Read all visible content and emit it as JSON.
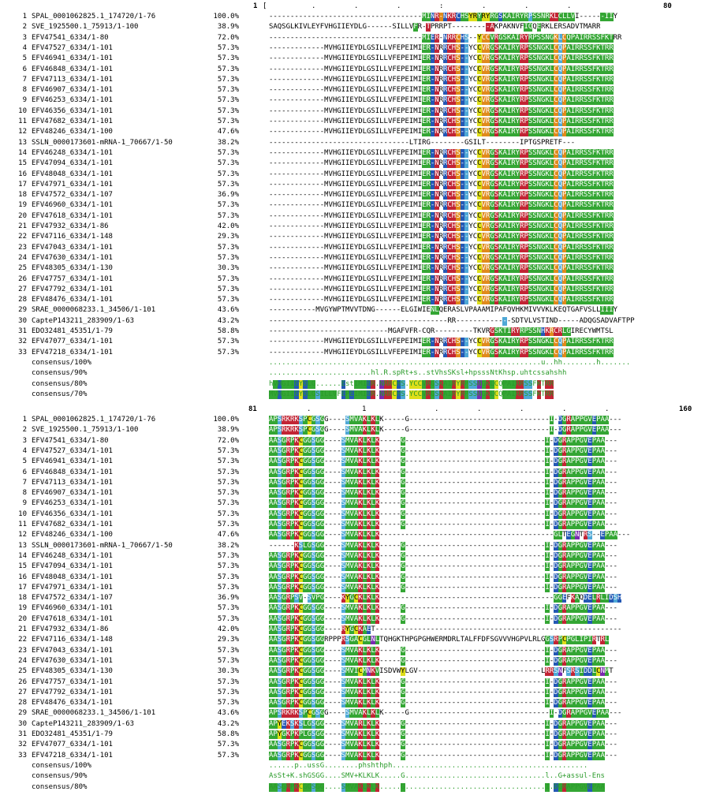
{
  "block1": {
    "ruler": {
      "start": "1",
      "bracket": "[",
      "end": "80",
      "marks": [
        ".",
        ".",
        ".",
        ":",
        ".",
        ".",
        "."
      ]
    },
    "rows": [
      {
        "n": "1",
        "name": "SPAL_0001062825.1_174720/1-76",
        "pct": "100.0%",
        "seq": "------------------------------------MINR-NKRCHSYRYRYRGSKAIRYRPSSNRKLCLLVI------IIY",
        "marks": "000000000000000000000000000000000000GGBRCBRRBGGYYGYYGGBGGGGGGLGGGGRRGGGG000000GGG"
      },
      {
        "n": "2",
        "name": "SVE_1925500.1_75913/1-100",
        "pct": "38.9%",
        "seq": "SAQSGLKIVLEYFVHGIIEYDLG------SILLVFR-TPRRPT---------AKPAKNVFIQQERKLERSADVTMARR",
        "marks": "0000000000000000000000000000000000G00R0000000000000RR0000000GG0G000000000000000"
      },
      {
        "n": "3",
        "name": "EFV47541_6334/1-80",
        "pct": "72.0%",
        "seq": "------------------------------------MIER-NRRCHS--YCCVRGSKAIRYRPSSNGKLCQPAIRRSSFKTRR",
        "marks": "000000000000000000000000000000000000GGBR0BRRCBL00YCCGRGGGGGRRGGGGGGCLCGGGGGGGGGGG"
      },
      {
        "n": "4",
        "name": "EFV47527_6334/1-101",
        "pct": "57.3%",
        "seq": "-------------MVHGIIEYDLGSILLVFEPEIMIER-NRRCHS--YCCVRGSKAIRYRPSSNGKLCQPAIRRSSFKTRR",
        "marks": "000000000000000000000000000000000000GGBR0BRRCBL00YCCGRGGGGGRRGGGGGGCLCGGGGGGGGGGG"
      },
      {
        "n": "5",
        "name": "EFV46941_6334/1-101",
        "pct": "57.3%",
        "seq": "-------------MVHGIIEYDLGSILLVFEPEIMIER-NRRCHS--YCCVRGSKAIRYRPSSNGKLCQPAIRRSSFKTRR",
        "marks": "000000000000000000000000000000000000GGBR0BRRCBL00YCCGRGGGGGRRGGGGGGCLCGGGGGGGGGGG"
      },
      {
        "n": "6",
        "name": "EFV46848_6334/1-101",
        "pct": "57.3%",
        "seq": "-------------MVHGIIEYDLGSILLVFEPEIMIER-NRRCHS--YCCVRGSKAIRYRPSSNGKLCQPAIRRSSFKTRR",
        "marks": "000000000000000000000000000000000000GGBR0BRRCBL00YCCGRGGGGGRRGGGGGGCLCGGGGGGGGGGG"
      },
      {
        "n": "7",
        "name": "EFV47113_6334/1-101",
        "pct": "57.3%",
        "seq": "-------------MVHGIIEYDLGSILLVFEPEIMIER-NRRCHS--YCCVRGSKAIRYRPSSNGKLCQPAIRRSSFKTRR",
        "marks": "000000000000000000000000000000000000GGBR0BRRCBL00YCCGRGGGGGRRGGGGGGCLCGGGGGGGGGGG"
      },
      {
        "n": "8",
        "name": "EFV46907_6334/1-101",
        "pct": "57.3%",
        "seq": "-------------MVHGIIEYDLGSILLVFEPEIMIER-NRRCHS--YCCVRGSKAIRYRPSSNGKLCQPAIRRSSFKTRR",
        "marks": "000000000000000000000000000000000000GGBR0BRRCBL00YCCGRGGGGGRRGGGGGGCLCGGGGGGGGGGG"
      },
      {
        "n": "9",
        "name": "EFV46253_6334/1-101",
        "pct": "57.3%",
        "seq": "-------------MVHGIIEYDLGSILLVFEPEIMIER-NRRCHS--YCCVRGSKAIRYRPSSNGKLCQPAIRRSSFKTRR",
        "marks": "000000000000000000000000000000000000GGBR0BRRCBL00YCCGRGGGGGRRGGGGGGCLCGGGGGGGGGGG"
      },
      {
        "n": "10",
        "name": "EFV46356_6334/1-101",
        "pct": "57.3%",
        "seq": "-------------MVHGIIEYDLGSILLVFEPEIMIER-NRRCHS--YCCVRGSKAIRYRPSSNGKLCQPAIRRSSFKTRR",
        "marks": "000000000000000000000000000000000000GGBR0BRRCBL00YCCGRGGGGGRRGGGGGGCLCGGGGGGGGGGG"
      },
      {
        "n": "11",
        "name": "EFV47682_6334/1-101",
        "pct": "57.3%",
        "seq": "-------------MVHGIIEYDLGSILLVFEPEIMIER-NRRCHS--YCCVRGSKAIRYRPSSNGKLCQPAIRRSSFKTRR",
        "marks": "000000000000000000000000000000000000GGBR0BRRCBL00YCCGRGGGGGRRGGGGGGCLCGGGGGGGGGGG"
      },
      {
        "n": "12",
        "name": "EFV48246_6334/1-100",
        "pct": "47.6%",
        "seq": "-------------MVHGIIEYDLGSILLVFEPEIMIER-NRRCHS--YCCVRGSKAIRYRPSSNGKLCQPAIRRSSFKTRR",
        "marks": "000000000000000000000000000000000000GGBR0BRRCBL00YCCGRGGGGGRRGGGGGGCLCGGGGGGGGGGG"
      },
      {
        "n": "13",
        "name": "SSLN_0000173601-mRNA-1_70667/1-50",
        "pct": "38.2%",
        "seq": "---------------------------------LTIRG--------GSILT--------IPTGSPRETF---",
        "marks": "000000000000000000000000000000000000000000000000000000000000000000000000"
      },
      {
        "n": "14",
        "name": "EFV46248_6334/1-101",
        "pct": "57.3%",
        "seq": "-------------MVHGIIEYDLGSILLVFEPEIMIER-NRRCHS--YCCVRGSKAIRYRPSSNGKLCQPAIRRSSFKTRR",
        "marks": "000000000000000000000000000000000000GGBR0BRRCBL00YCCGRGGGGGRRGGGGGGCLCGGGGGGGGGGG"
      },
      {
        "n": "15",
        "name": "EFV47094_6334/1-101",
        "pct": "57.3%",
        "seq": "-------------MVHGIIEYDLGSILLVFEPEIMIER-NRRCHS--YCCVRGSKAIRYRPSSNGKLCQPAIRRSSFKTRR",
        "marks": "000000000000000000000000000000000000GGBR0BRRCBL00YCCGRGGGGGRRGGGGGGCLCGGGGGGGGGGG"
      },
      {
        "n": "16",
        "name": "EFV48048_6334/1-101",
        "pct": "57.3%",
        "seq": "-------------MVHGIIEYDLGSILLVFEPEIMIER-NRRCHS--YCCVRGSKAIRYRPSSNGKLCQPAIRRSSFKTRR",
        "marks": "000000000000000000000000000000000000GGBR0BRRCBL00YCCGRGGGGGRRGGGGGGCLCGGGGGGGGGGG"
      },
      {
        "n": "17",
        "name": "EFV47971_6334/1-101",
        "pct": "57.3%",
        "seq": "-------------MVHGIIEYDLGSILLVFEPEIMIER-NRRCHS--YCCVRGSKAIRYRPSSNGKLCQPAIRRSSFKTRR",
        "marks": "000000000000000000000000000000000000GGBR0BRRCBL00YCCGRGGGGGRRGGGGGGCLCGGGGGGGGGGG"
      },
      {
        "n": "18",
        "name": "EFV47572_6334/1-107",
        "pct": "36.9%",
        "seq": "-------------MVHGIIEYDLGSILLVFEPEIMIER-NRRCHS--YCCVRGSKAIRYRPSSNGKLCQPAIRRSSFKTRR",
        "marks": "000000000000000000000000000000000000GGBR0BRRCBL00YCCGRGGGGGRRGGGGGGCLCGGGGGGGGGGG"
      },
      {
        "n": "19",
        "name": "EFV46960_6334/1-101",
        "pct": "57.3%",
        "seq": "-------------MVHGIIEYDLGSILLVFEPEIMIER-NRRCHS--YCCVRGSKAIRYRPSSNGKLCQPAIRRSSFKTRR",
        "marks": "000000000000000000000000000000000000GGBR0BRRCBL00YCCGRGGGGGRRGGGGGGCLCGGGGGGGGGGG"
      },
      {
        "n": "20",
        "name": "EFV47618_6334/1-101",
        "pct": "57.3%",
        "seq": "-------------MVHGIIEYDLGSILLVFEPEIMIER-NRRCHS--YCCVRGSKAIRYRPSSNGKLCQPAIRRSSFKTRR",
        "marks": "000000000000000000000000000000000000GGBR0BRRCBL00YCCGRGGGGGRRGGGGGGCLCGGGGGGGGGGG"
      },
      {
        "n": "21",
        "name": "EFV47932_6334/1-86",
        "pct": "42.0%",
        "seq": "-------------MVHGIIEYDLGSILLVFEPEIMIER-NRRCHS--YCCVRGSKAIRYRPSSNGKLCQPAIRRSSFKTRR",
        "marks": "000000000000000000000000000000000000GGBR0BRRCBL00YCCGRGGGGGRRGGGGGGCLCGGGGGGGGGGG"
      },
      {
        "n": "22",
        "name": "EFV47116_6334/1-148",
        "pct": "29.3%",
        "seq": "-------------MVHGIIEYDLGSILLVFEPEIMIER-NRRCHS--YCCVRGSKAIRYRPSSNGKLCQPAIRRSSFKTRR",
        "marks": "000000000000000000000000000000000000GGBR0BRRCBL00YCCGRGGGGGRRGGGGGGCLCGGGGGGGGGGG"
      },
      {
        "n": "23",
        "name": "EFV47043_6334/1-101",
        "pct": "57.3%",
        "seq": "-------------MVHGIIEYDLGSILLVFEPEIMIER-NRRCHS--YCCVRGSKAIRYRPSSNGKLCQPAIRRSSFKTRR",
        "marks": "000000000000000000000000000000000000GGBR0BRRCBL00YCCGRGGGGGRRGGGGGGCLCGGGGGGGGGGG"
      },
      {
        "n": "24",
        "name": "EFV47630_6334/1-101",
        "pct": "57.3%",
        "seq": "-------------MVHGIIEYDLGSILLVFEPEIMIER-NRRCHS--YCCVRGSKAIRYRPSSNGKLCQPAIRRSSFKTRR",
        "marks": "000000000000000000000000000000000000GGBR0BRRCBL00YCCGRGGGGGRRGGGGGGCLCGGGGGGGGGGG"
      },
      {
        "n": "25",
        "name": "EFV48305_6334/1-130",
        "pct": "30.3%",
        "seq": "-------------MVHGIIEYDLGSILLVFEPEIMIER-NRRCHS--YCCVRGSKAIRYRPSSNGKLCQPAIRRSSFKTRR",
        "marks": "000000000000000000000000000000000000GGBR0BRRCBL00YCCGRGGGGGRRGGGGGGCLCGGGGGGGGGGG"
      },
      {
        "n": "26",
        "name": "EFV47757_6334/1-101",
        "pct": "57.3%",
        "seq": "-------------MVHGIIEYDLGSILLVFEPEIMIER-NRRCHS--YCCVRGSKAIRYRPSSNGKLCQPAIRRSSFKTRR",
        "marks": "000000000000000000000000000000000000GGBR0BRRCBL00YCCGRGGGGGRRGGGGGGCLCGGGGGGGGGGG"
      },
      {
        "n": "27",
        "name": "EFV47792_6334/1-101",
        "pct": "57.3%",
        "seq": "-------------MVHGIIEYDLGSILLVFEPEIMIER-NRRCHS--YCCVRGSKAIRYRPSSNGKLCQPAIRRSSFKTRR",
        "marks": "000000000000000000000000000000000000GGBR0BRRCBL00YCCGRGGGGGRRGGGGGGCLCGGGGGGGGGGG"
      },
      {
        "n": "28",
        "name": "EFV48476_6334/1-101",
        "pct": "57.3%",
        "seq": "-------------MVHGIIEYDLGSILLVFEPEIMIER-NRRCHS--YCCVRGSKAIRYRPSSNGKLCQPAIRRSSFKTRR",
        "marks": "000000000000000000000000000000000000GGBR0BRRCBL00YCCGRGGGGGRRGGGGGGCLCGGGGGGGGGGG"
      },
      {
        "n": "29",
        "name": "SRAE_0000068233.1_34506/1-101",
        "pct": "43.6%",
        "seq": "-----------MVGYWPTMVVTDNG------ELGIWIENLQERASLVPAAAMIPAFQVHKMIVVVKLKEQTGAFVSLLIIIY",
        "marks": "00000000000000000000000000000000000000GG00000000000000000000000000000000000000GGG"
      },
      {
        "n": "30",
        "name": "CapteP143211_283909/1-63",
        "pct": "43.2%",
        "seq": "------------------------------------------RR-------------SDTVLVSTIND-----ADQGSADVAFTPP",
        "marks": "0000000000000000000000000000000000000000000000000000000L000000000000000000000000000"
      },
      {
        "n": "31",
        "name": "EDO32481_45351/1-79",
        "pct": "58.8%",
        "seq": "----------------------------MGAFVFR-CQR---------TKVRGSKTIRYRPSSNHKRCRLGIRECYWMTSL",
        "marks": "0000000000000000000000000000000000000000000000000000RGGGGRRGGGGGBRCRRGG000000000"
      },
      {
        "n": "32",
        "name": "EFV47077_6334/1-101",
        "pct": "57.3%",
        "seq": "-------------MVHGIIEYDLGSILLVFEPEIMIER-NRRCHS--YCCVRGSKAIRYRPSSNGKLCQPAIRRSSFKTRR",
        "marks": "000000000000000000000000000000000000GGBR0BRRCBL00YCCGRGGGGGRRGGGGGGCLCGGGGGGGGGGG"
      },
      {
        "n": "33",
        "name": "EFV47218_6334/1-101",
        "pct": "57.3%",
        "seq": "-------------MVHGIIEYDLGSILLVFEPEIMIER-NRRCHS--YCCVRGSKAIRYRPSSNGKLCQPAIRRSSFKTRR",
        "marks": "000000000000000000000000000000000000GGBR0BRRCBL00YCCGRGGGGGRRGGGGGGCLCGGGGGGGGGGG"
      }
    ],
    "consensus": [
      {
        "name": "consensus/100%",
        "seq": "................................................................u..hh........h......."
      },
      {
        "name": "consensus/90%",
        "seq": "........................hl.R.spRt+s..stVhsSKsl+hpsssNtKhsp.uhtcssahshh"
      },
      {
        "name": "consensus/80%",
        "seq": "hVHGIIEYDLG......EstIMIER.NRRCHS.YCCVRGSKAIRYRPSSNGKLCQPAIRRSSFKTRR"
      },
      {
        "name": "consensus/70%",
        "seq": "MVHGIIEYDLGSILLVFEPEIMIER.NRRCHS.YCCVRGSKAIRYRPSSNGKLCQPAIRRSSFKTRR"
      }
    ]
  },
  "block2": {
    "ruler": {
      "start": "81",
      "mid": "1",
      "end": "160",
      "marks": [
        ".",
        ".",
        ".",
        ".",
        ".",
        ".",
        "."
      ]
    },
    "rows": [
      {
        "n": "1",
        "name": "SPAL_0001062825.1_174720/1-76",
        "pct": "100.0%",
        "seq": "APSRKRKSPCGSGG----SMVAKLKLK-----G---------------------------------I-DGRAPPGVEPAA---"
      },
      {
        "n": "2",
        "name": "SVE_1925500.1_75913/1-100",
        "pct": "38.9%",
        "seq": "APSRKRKSPCGSGG----SMVAKLKLK-----G---------------------------------I-DGRAPPGVEPAA---"
      },
      {
        "n": "3",
        "name": "EFV47541_6334/1-80",
        "pct": "72.0%",
        "seq": "AASGRPKCGGSGG----SMVAKLKLK-----G---------------------------------I-DGRAPPGVEPAA---"
      },
      {
        "n": "4",
        "name": "EFV47527_6334/1-101",
        "pct": "57.3%",
        "seq": "AASGRPKCGGSGG----SMVAKLKLK-----G---------------------------------I-DGRAPPGVEPAA---"
      },
      {
        "n": "5",
        "name": "EFV46941_6334/1-101",
        "pct": "57.3%",
        "seq": "AASGRPKCGGSGG----SMVAKLKLK-----G---------------------------------I-DGRAPPGVEPAA---"
      },
      {
        "n": "6",
        "name": "EFV46848_6334/1-101",
        "pct": "57.3%",
        "seq": "AASGRPKCGGSGG----SMVAKLKLK-----G---------------------------------I-DGRAPPGVEPAA---"
      },
      {
        "n": "7",
        "name": "EFV47113_6334/1-101",
        "pct": "57.3%",
        "seq": "AASGRPKCGGSGG----SMVAKLKLK-----G---------------------------------I-DGRAPPGVEPAA---"
      },
      {
        "n": "8",
        "name": "EFV46907_6334/1-101",
        "pct": "57.3%",
        "seq": "AASGRPKCGGSGG----SMVAKLKLK-----G---------------------------------I-DGRAPPGVEPAA---"
      },
      {
        "n": "9",
        "name": "EFV46253_6334/1-101",
        "pct": "57.3%",
        "seq": "AASGRPKCGGSGG----SMVAKLKLK-----G---------------------------------I-DGRAPPGVEPAA---"
      },
      {
        "n": "10",
        "name": "EFV46356_6334/1-101",
        "pct": "57.3%",
        "seq": "AASGRPKCGGSGG----SMVAKLKLK-----G---------------------------------I-DGRAPPGVEPAA---"
      },
      {
        "n": "11",
        "name": "EFV47682_6334/1-101",
        "pct": "57.3%",
        "seq": "AASGRPKCGGSGG----SMVAKLKLK-----G---------------------------------I-DGRAPPGVEPAA---"
      },
      {
        "n": "12",
        "name": "EFV48246_6334/1-100",
        "pct": "47.6%",
        "seq": "AASGRPKCGGSGG----SMVAKLKLK-----------------------------------------GLTEGNTRS--EPAA---"
      },
      {
        "n": "13",
        "name": "SSLN_0000173601-mRNA-1_70667/1-50",
        "pct": "38.2%",
        "seq": "------KSLGSGG----SMVAKLKLK-----G---------------------------------I-DGRAPPGVEPAA---"
      },
      {
        "n": "14",
        "name": "EFV46248_6334/1-101",
        "pct": "57.3%",
        "seq": "AASGRPKCGGSGG----SMVAKLKLK-----G---------------------------------I-DGRAPPGVEPAA---"
      },
      {
        "n": "15",
        "name": "EFV47094_6334/1-101",
        "pct": "57.3%",
        "seq": "AASGRPKCGGSGG----SMVAKLKLK-----G---------------------------------I-DGRAPPGVEPAA---"
      },
      {
        "n": "16",
        "name": "EFV48048_6334/1-101",
        "pct": "57.3%",
        "seq": "AASGRPKCGGSGG----SMVAKLKLK-----G---------------------------------I-DGRAPPGVEPAA---"
      },
      {
        "n": "17",
        "name": "EFV47971_6334/1-101",
        "pct": "57.3%",
        "seq": "AASGRPKCGGSGG----SMVAKLKLK-----G---------------------------------I-DGRAPPGVEPAA---"
      },
      {
        "n": "18",
        "name": "EFV47572_6334/1-107",
        "pct": "36.9%",
        "seq": "AASGRPSV-SVPG----KYGCKLKLK-----------------------------------------GGEFKAQDELRLIDSH"
      },
      {
        "n": "19",
        "name": "EFV46960_6334/1-101",
        "pct": "57.3%",
        "seq": "AASGRPKCGGSGG----SMVAKLKLK-----G---------------------------------I-DGRAPPGVEPAA---"
      },
      {
        "n": "20",
        "name": "EFV47618_6334/1-101",
        "pct": "57.3%",
        "seq": "AASGRPKCGGSGG----SMVAKLKLK-----G---------------------------------I-DGRAPPGVEPAA---"
      },
      {
        "n": "21",
        "name": "EFV47932_6334/1-86",
        "pct": "42.0%",
        "seq": "AASGRPKCGGSGG----RYGCKAET----------------------------------------------------------"
      },
      {
        "n": "22",
        "name": "EFV47116_6334/1-148",
        "pct": "29.3%",
        "seq": "AASGRPKCGGSGGRPPPRSGACGLNLTQHGKTHPGPGHWERMDRLTALFFDFSGVVVHGPVLRLGGSRPCPGLIPIRTRL"
      },
      {
        "n": "23",
        "name": "EFV47043_6334/1-101",
        "pct": "57.3%",
        "seq": "AASGRPKCGGSGG----SMVAKLKLK-----G---------------------------------I-DGRAPPGVEPAA---"
      },
      {
        "n": "24",
        "name": "EFV47630_6334/1-101",
        "pct": "57.3%",
        "seq": "AASGRPKCGGSGG----SMVAKLKLK-----G---------------------------------I-DGRAPPGVEPAA---"
      },
      {
        "n": "25",
        "name": "EFV48305_6334/1-130",
        "pct": "30.3%",
        "seq": "AASGRPKCGGSGG----SMVICMNKVISDVWYLGV-----------------------------LRRSNFSRSIDDLCNMT"
      },
      {
        "n": "26",
        "name": "EFV47757_6334/1-101",
        "pct": "57.3%",
        "seq": "AASGRPKCGGSGG----SMVAKLKLK-----G---------------------------------I-DGRAPPGVEPAA---"
      },
      {
        "n": "27",
        "name": "EFV47792_6334/1-101",
        "pct": "57.3%",
        "seq": "AASGRPKCGGSGG----SMVAKLKLK-----G---------------------------------I-DGRAPPGVEPAA---"
      },
      {
        "n": "28",
        "name": "EFV48476_6334/1-101",
        "pct": "57.3%",
        "seq": "AASGRPKCGGSGG----SMVAKLKLK-----G---------------------------------I-DGRAPPGVEPAA---"
      },
      {
        "n": "29",
        "name": "SRAE_0000068233.1_34506/1-101",
        "pct": "43.6%",
        "seq": "APSRKRKSPCGSGG----SMVAKLKLK-----G---------------------------------I-DGRAPPGVEPAA---"
      },
      {
        "n": "30",
        "name": "CapteP143211_283909/1-63",
        "pct": "43.2%",
        "seq": "APYEKSKSLGSGG----SMVARLKLK-----G---------------------------------I-DGRAPPGVEPAA---"
      },
      {
        "n": "31",
        "name": "EDO32481_45351/1-79",
        "pct": "58.8%",
        "seq": "APYGKPKPLGSGG----SMVAKLKLK-----G---------------------------------I-DGRAPPGVEPAA---"
      },
      {
        "n": "32",
        "name": "EFV47077_6334/1-101",
        "pct": "57.3%",
        "seq": "AASGRPKCGGSGG----SMVAKLKLK-----G---------------------------------I-DGRAPPGVEPAA---"
      },
      {
        "n": "33",
        "name": "EFV47218_6334/1-101",
        "pct": "57.3%",
        "seq": "AASGRPKCGGSGG----SMVAKLKLK-----G---------------------------------I-DGRAPPGVEPAA---"
      }
    ],
    "consensus": [
      {
        "name": "consensus/100%",
        "seq": "......p..ussG........phshthph.............................................."
      },
      {
        "name": "consensus/90%",
        "seq": "AsSt+K.shGSGG....SMV+KLKLK.....G.................................l..G+assul-Ens"
      },
      {
        "name": "consensus/80%",
        "seq": "AASGRPKCGGSGG....SMVAKLKLK.....G.................................I.DGRAPPGVEPAA"
      }
    ]
  },
  "colors": {
    "G": "#34a634",
    "R": "#c22434",
    "B": "#2458b4",
    "L": "#4fa8d6",
    "Y": "#dede1a",
    "P": "#7a2ab0",
    "C": "#e08a1c"
  }
}
